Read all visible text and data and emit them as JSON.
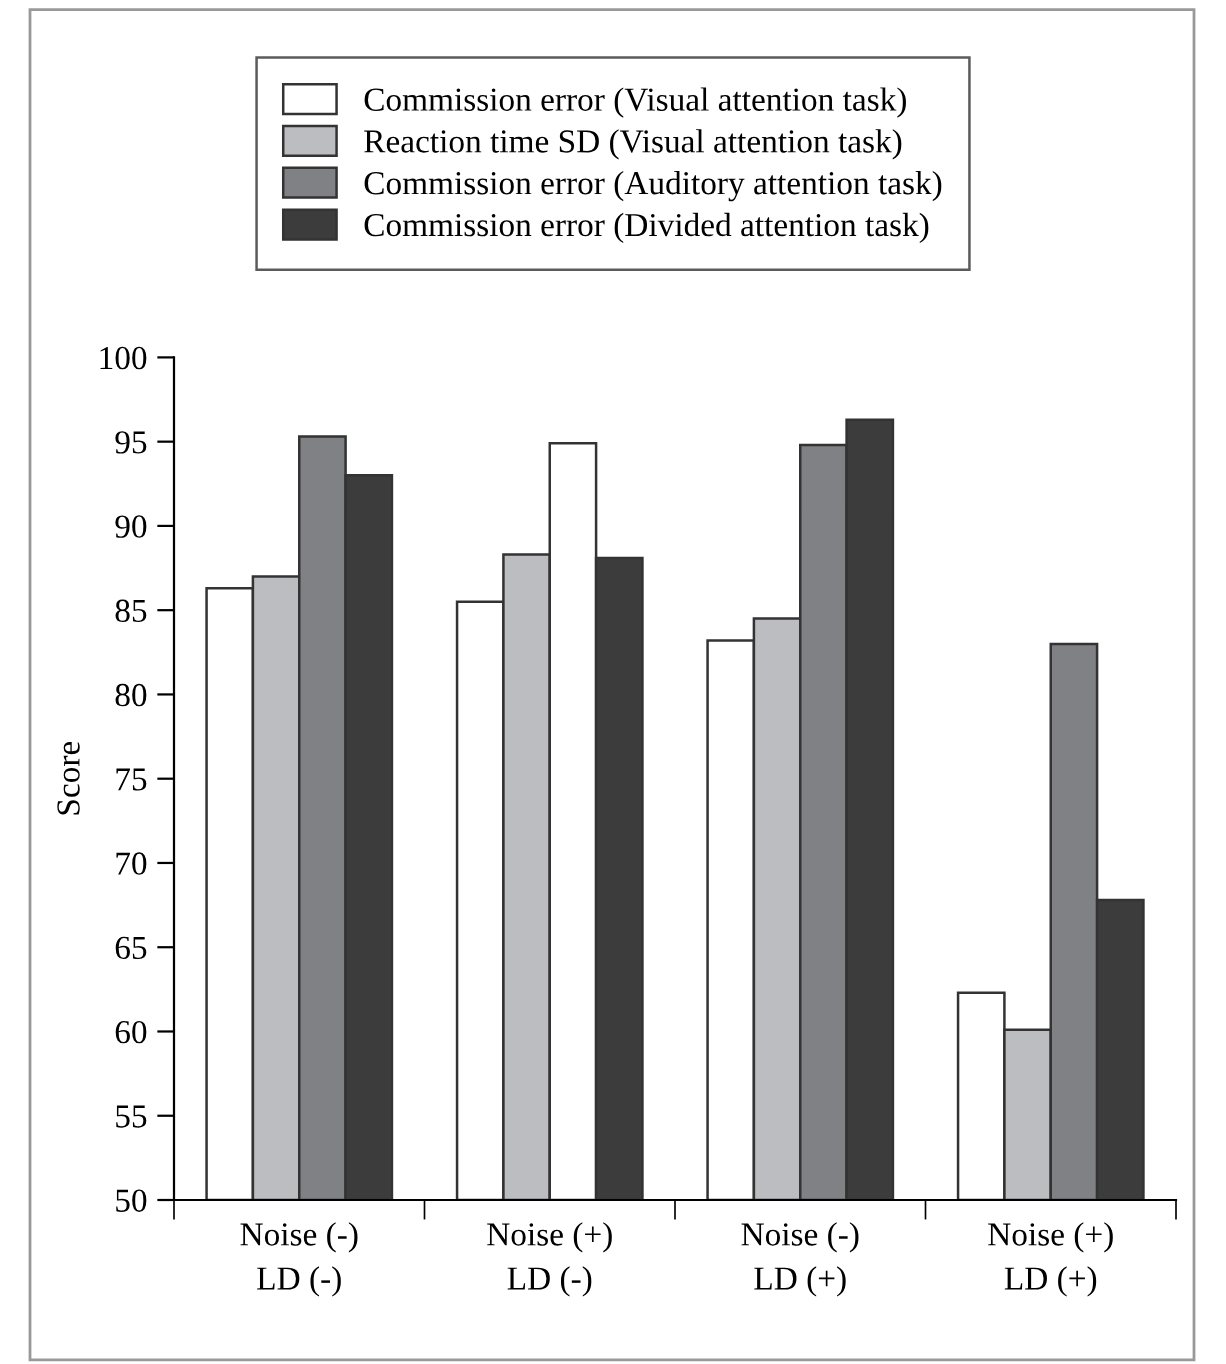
{
  "chart_data": {
    "type": "bar",
    "ylabel": "Score",
    "categories": [
      "Noise (-)\nLD (-)",
      "Noise (+)\nLD (-)",
      "Noise (-)\nLD (+)",
      "Noise (+)\nLD (+)"
    ],
    "series": [
      {
        "name": "Commission error (Visual attention task)",
        "color": "#ffffff",
        "values": [
          86.3,
          85.5,
          83.2,
          62.3
        ]
      },
      {
        "name": "Reaction time SD (Visual attention task)",
        "color": "#bcbdc1",
        "values": [
          87.0,
          88.3,
          84.5,
          60.1
        ]
      },
      {
        "name": "Commission error (Auditory attention task)",
        "color": "#808185",
        "colors": [
          "#808185",
          "#ffffff",
          "#808185",
          "#808185"
        ],
        "values": [
          95.3,
          94.9,
          94.8,
          83.0
        ]
      },
      {
        "name": "Commission error (Divided attention task)",
        "color": "#3c3c3c",
        "values": [
          93.0,
          88.1,
          96.3,
          67.8
        ]
      }
    ],
    "ylim": [
      50,
      100
    ],
    "yticks": [
      50,
      55,
      60,
      65,
      70,
      75,
      80,
      85,
      90,
      95,
      100
    ],
    "grid": false,
    "legend": "top"
  }
}
